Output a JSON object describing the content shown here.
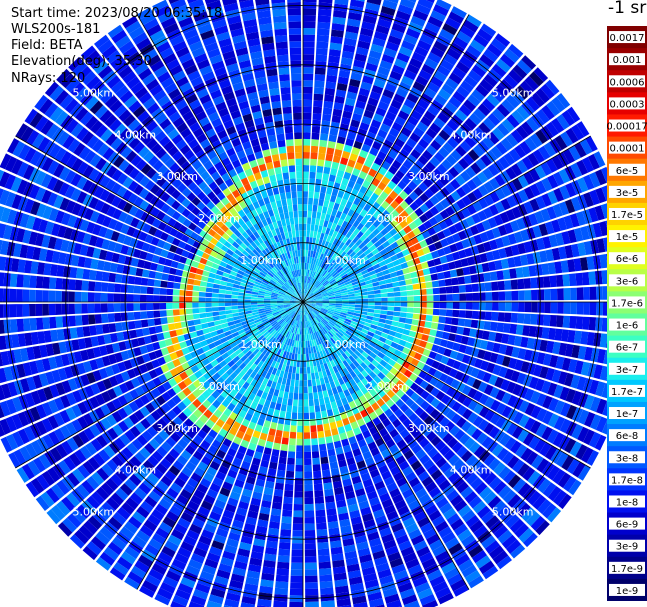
{
  "header": {
    "start_time": "Start time: 2023/08/20 06:35:18",
    "instrument": "WLS200s-181",
    "field": "Field: BETA",
    "elevation": "Elevation(deg): 35.30",
    "nrays": "NRays: 120"
  },
  "colorbar": {
    "title": "-1 sr",
    "labels": [
      "0.0017",
      "0.001",
      "0.0006",
      "0.0003",
      "0.00017",
      "0.0001",
      "6e-5",
      "3e-5",
      "1.7e-5",
      "1e-5",
      "6e-6",
      "3e-6",
      "1.7e-6",
      "1e-6",
      "6e-7",
      "3e-7",
      "1.7e-7",
      "1e-7",
      "6e-8",
      "3e-8",
      "1.7e-8",
      "1e-8",
      "6e-9",
      "3e-9",
      "1.7e-9",
      "1e-9"
    ],
    "colors": [
      "#800000",
      "#9a0000",
      "#c00000",
      "#e60000",
      "#ff1a00",
      "#ff4a00",
      "#ff7800",
      "#ffa600",
      "#ffd200",
      "#fff200",
      "#e0ff1f",
      "#b8ff47",
      "#8cff73",
      "#62ff9d",
      "#3cffc3",
      "#1aeeed",
      "#00c8ff",
      "#00a2ff",
      "#007cff",
      "#0058ff",
      "#0034ff",
      "#0010f0",
      "#0000cc",
      "#0000aa",
      "#00008a",
      "#00006a"
    ]
  },
  "chart_data": {
    "type": "heatmap",
    "projection": "polar-ppi",
    "nrays": 120,
    "field": "BETA",
    "units": "sr-1",
    "range_rings_km": [
      {
        "km": 1,
        "label": "1.00km"
      },
      {
        "km": 2,
        "label": "2.00km"
      },
      {
        "km": 3,
        "label": "3.00km"
      },
      {
        "km": 4,
        "label": "4.00km"
      },
      {
        "km": 5,
        "label": "5.00km"
      }
    ],
    "max_range_km": 5.6,
    "azimuth_lines_deg": [
      0,
      30,
      60,
      90,
      120,
      150,
      180,
      210,
      240,
      270,
      300,
      330
    ],
    "ring_label_angles_deg": [
      -45,
      45,
      135,
      -135
    ],
    "color_scale": "log",
    "value_range": [
      1e-09,
      0.0017
    ],
    "features": {
      "cloud_ring_range_km": 2.2,
      "cloud_ring_beta": 5e-05
    }
  }
}
